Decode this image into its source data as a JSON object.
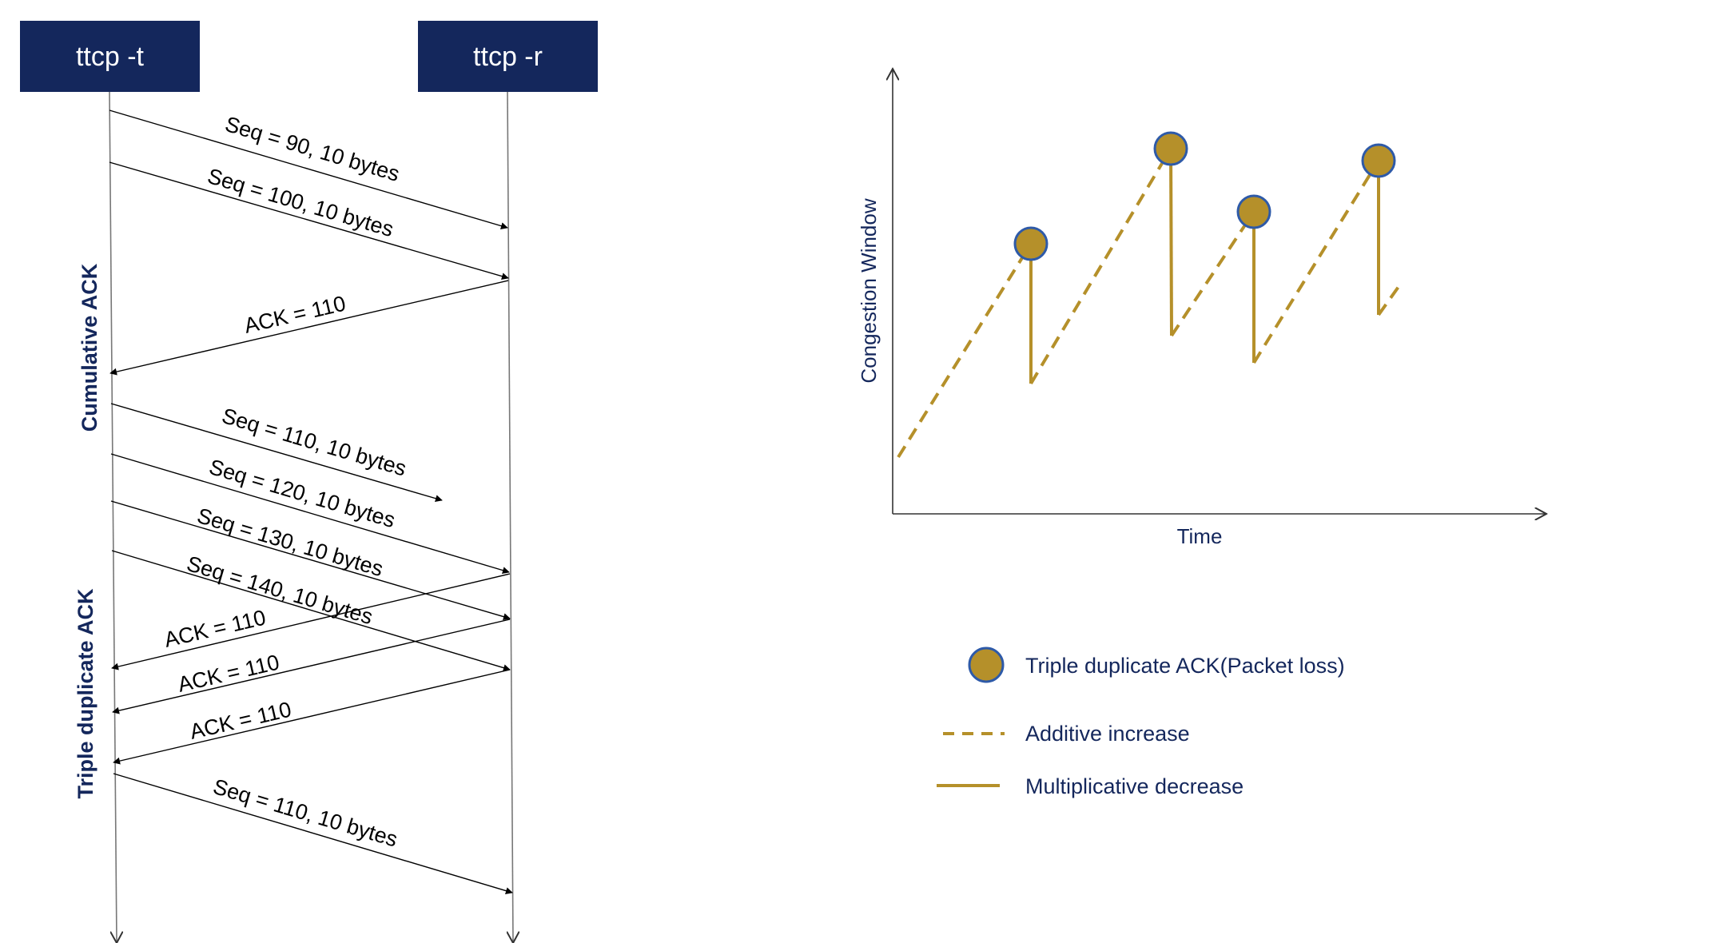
{
  "sequence_diagram": {
    "sender": {
      "label": "ttcp -t"
    },
    "receiver": {
      "label": "ttcp -r"
    },
    "host_color": "#14275c",
    "side_labels": {
      "cumulative_ack": "Cumulative ACK",
      "triple_duplicate_ack": "Triple duplicate ACK"
    },
    "messages": [
      {
        "label": "Seq = 90, 10 bytes",
        "direction": "sender-to-receiver",
        "delivered": true
      },
      {
        "label": "Seq = 100, 10 bytes",
        "direction": "sender-to-receiver",
        "delivered": true
      },
      {
        "label": "ACK = 110",
        "direction": "receiver-to-sender",
        "delivered": true
      },
      {
        "label": "Seq = 110, 10 bytes",
        "direction": "sender-to-receiver",
        "delivered": false
      },
      {
        "label": "Seq = 120, 10 bytes",
        "direction": "sender-to-receiver",
        "delivered": true
      },
      {
        "label": "Seq = 130, 10 bytes",
        "direction": "sender-to-receiver",
        "delivered": true
      },
      {
        "label": "Seq = 140, 10 bytes",
        "direction": "sender-to-receiver",
        "delivered": true
      },
      {
        "label": "ACK = 110",
        "direction": "receiver-to-sender",
        "delivered": true
      },
      {
        "label": "ACK = 110",
        "direction": "receiver-to-sender",
        "delivered": true
      },
      {
        "label": "ACK = 110",
        "direction": "receiver-to-sender",
        "delivered": true
      },
      {
        "label": "Seq = 110, 10 bytes",
        "direction": "sender-to-receiver",
        "delivered": true
      }
    ]
  },
  "congestion_chart": {
    "ylabel": "Congestion Window",
    "xlabel": "Time",
    "series_color": "#b5902a",
    "marker_stroke": "#2e5aa8",
    "legend": [
      {
        "label": "Triple duplicate ACK(Packet loss)",
        "symbol": "circle"
      },
      {
        "label": "Additive increase",
        "symbol": "dashed-line"
      },
      {
        "label": "Multiplicative decrease",
        "symbol": "solid-line"
      }
    ]
  }
}
